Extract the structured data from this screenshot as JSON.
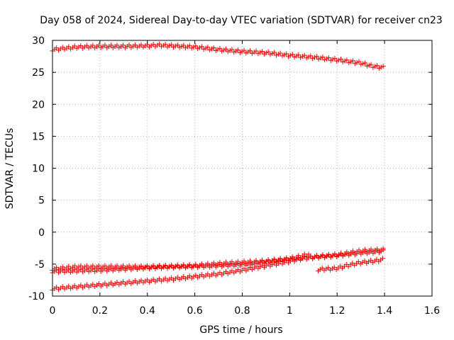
{
  "chart_data": {
    "type": "scatter",
    "title": "Day 058 of 2024, Sidereal Day-to-day VTEC variation (SDTVAR) for receiver cn23",
    "xlabel": "GPS time / hours",
    "ylabel": "SDTVAR / TECUs",
    "xlim": [
      0,
      1.6
    ],
    "ylim": [
      -10,
      30
    ],
    "xticks": [
      0,
      0.2,
      0.4,
      0.6,
      0.8,
      1,
      1.2,
      1.4,
      1.6
    ],
    "xtick_labels": [
      "0",
      "0.2",
      "0.4",
      "0.6",
      "0.8",
      "1",
      "1.2",
      "1.4",
      "1.6"
    ],
    "yticks": [
      -10,
      -5,
      0,
      5,
      10,
      15,
      20,
      25,
      30
    ],
    "ytick_labels": [
      "-10",
      "-5",
      "0",
      "5",
      "10",
      "15",
      "20",
      "25",
      "30"
    ],
    "grid": true,
    "legend": "none",
    "marker": "plus",
    "color": "#ff0000",
    "series": [
      {
        "name": "track-1",
        "x": [
          0,
          0.1,
          0.2,
          0.3,
          0.4,
          0.45,
          0.5,
          0.6,
          0.7,
          0.8,
          0.9,
          1.0,
          1.1,
          1.2,
          1.3,
          1.35,
          1.4
        ],
        "y": [
          28.5,
          28.9,
          29.0,
          29.0,
          29.1,
          29.2,
          29.1,
          28.9,
          28.5,
          28.2,
          28.0,
          27.6,
          27.3,
          26.9,
          26.4,
          25.9,
          25.7
        ]
      },
      {
        "name": "track-2",
        "x": [
          0,
          0.1,
          0.2,
          0.3,
          0.4,
          0.5,
          0.6,
          0.7,
          0.8,
          0.9,
          1.0,
          1.05,
          1.08
        ],
        "y": [
          -5.8,
          -5.5,
          -5.5,
          -5.5,
          -5.5,
          -5.4,
          -5.3,
          -5.0,
          -4.8,
          -4.6,
          -4.2,
          -3.8,
          -3.5
        ]
      },
      {
        "name": "track-3",
        "x": [
          0,
          0.1,
          0.2,
          0.3,
          0.4,
          0.5,
          0.6,
          0.7,
          0.8,
          0.9,
          1.0,
          1.1,
          1.2,
          1.3,
          1.4
        ],
        "y": [
          -6.2,
          -6.1,
          -6.0,
          -5.8,
          -5.6,
          -5.5,
          -5.4,
          -5.3,
          -5.1,
          -4.7,
          -4.3,
          -4.0,
          -3.7,
          -3.3,
          -3.0
        ]
      },
      {
        "name": "track-4",
        "x": [
          0,
          0.1,
          0.2,
          0.3,
          0.4,
          0.5,
          0.6,
          0.7,
          0.8,
          0.9,
          1.0,
          1.05,
          1.1,
          1.2,
          1.3,
          1.4
        ],
        "y": [
          -8.9,
          -8.6,
          -8.3,
          -8.0,
          -7.7,
          -7.4,
          -7.0,
          -6.6,
          -6.0,
          -5.3,
          -4.6,
          -4.2,
          -3.9,
          -3.6,
          -3.0,
          -2.8
        ]
      },
      {
        "name": "track-5",
        "x": [
          1.12,
          1.2,
          1.25,
          1.3,
          1.35,
          1.4
        ],
        "y": [
          -5.9,
          -5.7,
          -5.2,
          -4.8,
          -4.6,
          -4.3
        ]
      }
    ]
  }
}
